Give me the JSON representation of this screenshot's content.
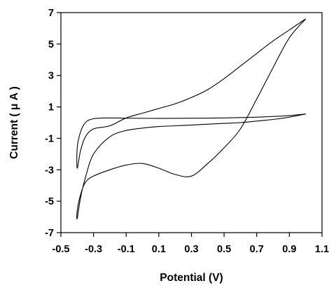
{
  "chart_data": {
    "type": "line",
    "title": "",
    "xlabel": "Potential (V)",
    "ylabel": "Current ( μ A )",
    "xlim": [
      -0.5,
      1.1
    ],
    "ylim": [
      -7,
      7
    ],
    "x_ticks": [
      -0.5,
      -0.3,
      -0.1,
      0.1,
      0.3,
      0.5,
      0.7,
      0.9,
      1.1
    ],
    "x_tick_labels": [
      "-0.5",
      "-0.3",
      "-0.1",
      "0.1",
      "0.3",
      "0.5",
      "0.7",
      "0.9",
      "1.1"
    ],
    "y_ticks": [
      -7,
      -5,
      -3,
      -1,
      1,
      3,
      5,
      7
    ],
    "y_tick_labels": [
      "-7",
      "-5",
      "-3",
      "-1",
      "1",
      "3",
      "5",
      "7"
    ],
    "grid": false,
    "legend": "none",
    "series": [
      {
        "x": [
          1.0,
          0.9,
          0.7,
          0.5,
          0.3,
          0.1,
          -0.1,
          -0.2,
          -0.3,
          -0.35,
          -0.38,
          -0.4,
          -0.4,
          -0.38,
          -0.35,
          -0.3,
          -0.2,
          -0.1,
          0.0,
          0.1,
          0.2,
          0.3,
          0.4,
          0.5,
          0.6,
          0.7,
          0.8,
          0.9,
          1.0
        ],
        "y": [
          0.55,
          0.45,
          0.35,
          0.3,
          0.28,
          0.27,
          0.28,
          0.3,
          0.25,
          0.0,
          -0.6,
          -1.6,
          -2.9,
          -1.8,
          -0.9,
          -0.4,
          -0.2,
          0.3,
          0.6,
          0.9,
          1.2,
          1.6,
          2.1,
          2.8,
          3.6,
          4.4,
          5.2,
          5.9,
          6.6
        ]
      },
      {
        "x": [
          1.0,
          0.9,
          0.8,
          0.7,
          0.6,
          0.5,
          0.4,
          0.3,
          0.2,
          0.1,
          0.0,
          -0.1,
          -0.2,
          -0.3,
          -0.35,
          -0.38,
          -0.4,
          -0.4,
          -0.38,
          -0.35,
          -0.3,
          -0.2,
          -0.1,
          0.0,
          0.1,
          0.2,
          0.3,
          0.4,
          0.5,
          0.6,
          0.7,
          0.8,
          0.9,
          1.0
        ],
        "y": [
          6.6,
          5.4,
          3.5,
          1.5,
          -0.4,
          -1.6,
          -2.6,
          -3.4,
          -3.3,
          -2.9,
          -2.6,
          -2.7,
          -3.0,
          -3.4,
          -3.8,
          -4.6,
          -5.6,
          -6.1,
          -4.8,
          -3.5,
          -2.0,
          -0.9,
          -0.5,
          -0.35,
          -0.25,
          -0.2,
          -0.15,
          -0.1,
          -0.05,
          0.0,
          0.1,
          0.2,
          0.35,
          0.55
        ]
      }
    ]
  }
}
